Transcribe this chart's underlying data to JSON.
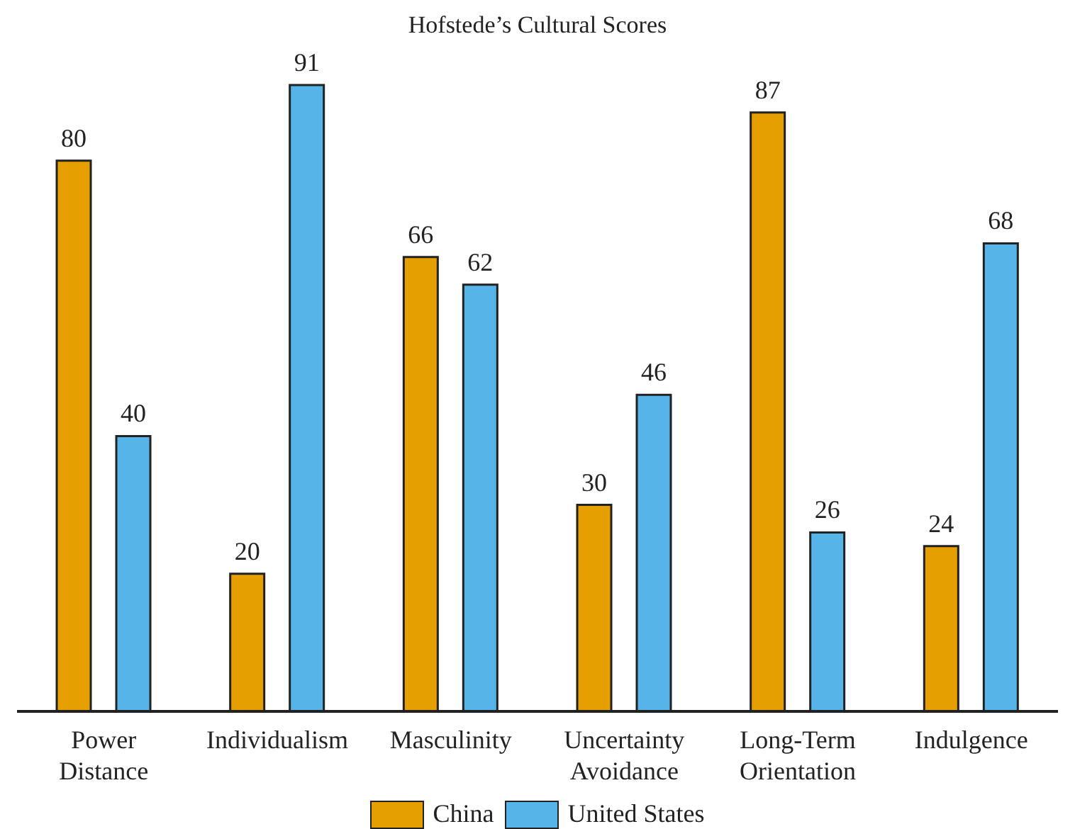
{
  "chart_data": {
    "type": "bar",
    "title": "Hofstede’s Cultural Scores",
    "categories": [
      "Power Distance",
      "Individualism",
      "Masculinity",
      "Uncertainty Avoidance",
      "Long-Term Orientation",
      "Indulgence"
    ],
    "series": [
      {
        "name": "China",
        "color": "#e69f00",
        "values": [
          80,
          20,
          66,
          30,
          87,
          24
        ]
      },
      {
        "name": "United States",
        "color": "#56b4e9",
        "values": [
          40,
          91,
          62,
          46,
          26,
          68
        ]
      }
    ],
    "data_labels": true,
    "grid": false,
    "legend": "bottom"
  }
}
